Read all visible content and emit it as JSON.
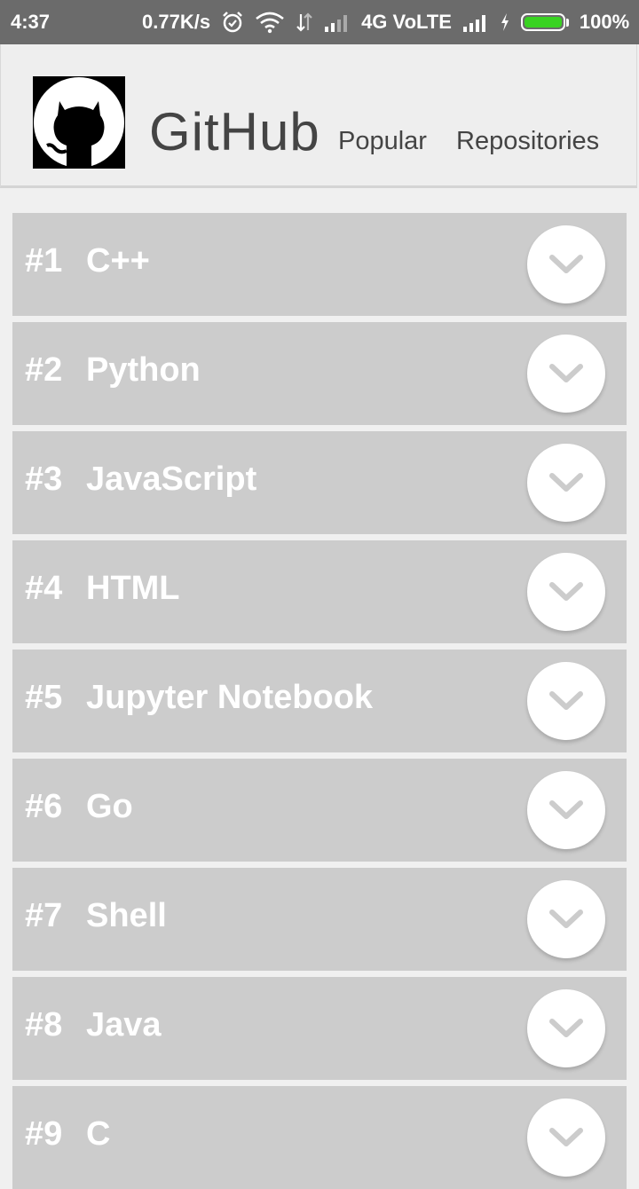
{
  "status_bar": {
    "time": "4:37",
    "speed": "0.77K/s",
    "network": "4G VoLTE",
    "battery": "100%",
    "battery_level": 1.0,
    "battery_color": "#39d321"
  },
  "header": {
    "title": "GitHub",
    "subtitle_1": "Popular",
    "subtitle_2": "Repositories",
    "logo_icon": "github-octocat-icon"
  },
  "list": {
    "items": [
      {
        "rank": "#1",
        "language": "C++"
      },
      {
        "rank": "#2",
        "language": "Python"
      },
      {
        "rank": "#3",
        "language": "JavaScript"
      },
      {
        "rank": "#4",
        "language": "HTML"
      },
      {
        "rank": "#5",
        "language": "Jupyter Notebook"
      },
      {
        "rank": "#6",
        "language": "Go"
      },
      {
        "rank": "#7",
        "language": "Shell"
      },
      {
        "rank": "#8",
        "language": "Java"
      },
      {
        "rank": "#9",
        "language": "C"
      }
    ],
    "expand_icon": "chevron-down-icon"
  },
  "colors": {
    "status_bar_bg": "#6b6b6b",
    "header_bg": "#eeeeee",
    "item_bg": "#cccccc",
    "item_text": "#ffffff",
    "chevron": "#cccccc"
  }
}
